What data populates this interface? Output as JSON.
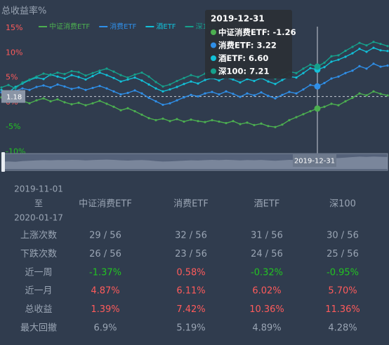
{
  "chart_data": {
    "type": "line",
    "title": "总收益率%",
    "categories": [
      null,
      null,
      null,
      null,
      null,
      null,
      null,
      null,
      null,
      null,
      null,
      null,
      null,
      null,
      null,
      null,
      null,
      null,
      null,
      null,
      null,
      null,
      null,
      null,
      null,
      null,
      null,
      null,
      null,
      null,
      null,
      null,
      null,
      null,
      null,
      null,
      null,
      null,
      null,
      null,
      null,
      null,
      null,
      null,
      null,
      "2019-12-31",
      null,
      null,
      null,
      null,
      null,
      null,
      null,
      null,
      null,
      null
    ],
    "series": [
      {
        "name": "中证消费ETF",
        "color": "#4caf50",
        "values": [
          1.0,
          0.5,
          0.9,
          0.3,
          -0.2,
          0.4,
          0.8,
          0.2,
          0.6,
          0.0,
          -0.4,
          -0.1,
          -0.6,
          -0.2,
          0.3,
          -0.3,
          -0.9,
          -1.6,
          -1.2,
          -1.8,
          -2.5,
          -3.2,
          -3.6,
          -3.3,
          -3.8,
          -3.4,
          -3.9,
          -3.5,
          -3.8,
          -4.0,
          -3.6,
          -3.9,
          -4.2,
          -3.8,
          -4.4,
          -4.1,
          -4.6,
          -4.3,
          -4.8,
          -5.0,
          -4.5,
          -3.6,
          -3.0,
          -2.4,
          -1.8,
          -1.26,
          -0.9,
          -0.3,
          -0.6,
          0.2,
          0.9,
          1.8,
          1.4,
          2.2,
          1.7,
          1.39
        ]
      },
      {
        "name": "消费ETF",
        "color": "#2f8fe8",
        "values": [
          2.0,
          1.6,
          2.3,
          2.8,
          2.5,
          3.1,
          3.4,
          3.0,
          3.6,
          3.2,
          2.7,
          3.0,
          2.5,
          2.9,
          3.3,
          2.8,
          2.2,
          1.6,
          1.9,
          2.4,
          1.8,
          0.9,
          0.2,
          -0.5,
          -0.2,
          0.4,
          1.0,
          1.5,
          1.2,
          1.8,
          2.1,
          1.6,
          2.2,
          1.7,
          1.1,
          1.8,
          1.4,
          2.0,
          1.3,
          0.8,
          1.5,
          2.1,
          1.8,
          2.6,
          3.5,
          3.22,
          3.9,
          4.8,
          5.2,
          5.9,
          6.4,
          7.3,
          6.8,
          7.8,
          7.2,
          7.42
        ]
      },
      {
        "name": "酒ETF",
        "color": "#12c0d8",
        "values": [
          2.5,
          2.0,
          3.1,
          3.8,
          4.5,
          5.0,
          4.7,
          5.6,
          5.2,
          4.8,
          5.5,
          5.1,
          4.6,
          5.3,
          6.0,
          5.5,
          4.9,
          4.2,
          4.6,
          5.0,
          4.4,
          3.6,
          2.8,
          2.2,
          2.6,
          3.1,
          3.7,
          4.2,
          3.8,
          4.5,
          4.9,
          4.4,
          5.0,
          4.6,
          4.0,
          4.7,
          4.3,
          4.9,
          4.2,
          3.7,
          4.5,
          5.2,
          5.0,
          5.9,
          6.9,
          6.6,
          7.1,
          8.2,
          8.6,
          9.2,
          9.9,
          10.8,
          10.2,
          11.0,
          10.5,
          10.36
        ]
      },
      {
        "name": "深100",
        "color": "#16a08c",
        "values": [
          3.0,
          3.5,
          2.8,
          4.0,
          4.6,
          5.2,
          5.8,
          5.5,
          6.0,
          5.7,
          6.3,
          6.1,
          5.4,
          5.9,
          6.4,
          6.8,
          6.2,
          5.5,
          5.0,
          5.6,
          6.0,
          5.2,
          4.1,
          3.2,
          3.6,
          4.3,
          4.9,
          5.5,
          5.1,
          5.8,
          6.2,
          5.7,
          6.4,
          5.9,
          5.3,
          6.0,
          5.6,
          6.1,
          5.4,
          4.8,
          5.5,
          6.2,
          5.9,
          6.8,
          7.6,
          7.21,
          8.0,
          9.3,
          9.5,
          10.4,
          11.2,
          12.0,
          11.5,
          12.2,
          11.8,
          11.36
        ]
      }
    ],
    "ylim": [
      -10,
      15
    ],
    "yticks": [
      {
        "value": -10,
        "label": "-10%"
      },
      {
        "value": -5,
        "label": "-5%"
      },
      {
        "value": 0,
        "label": "0%"
      },
      {
        "value": 5,
        "label": "5%"
      },
      {
        "value": 10,
        "label": "10%"
      },
      {
        "value": 15,
        "label": "15%"
      }
    ],
    "grid": false,
    "y_pointer": 1.18,
    "tooltip": [
      "中证消费ETF: -1.26",
      "消费ETF: 3.22",
      "酒ETF: 6.60",
      "深100: 7.21"
    ],
    "zoom_label": "2019-12-31"
  },
  "table": {
    "period": [
      "2019-11-01",
      "至",
      "2020-01-17"
    ],
    "columns": [
      "中证消费ETF",
      "消费ETF",
      "酒ETF",
      "深100"
    ],
    "rows": [
      {
        "label": "上涨次数",
        "cells": [
          "29 / 56",
          "32 / 56",
          "31 / 56",
          "30 / 56"
        ],
        "signed": false
      },
      {
        "label": "下跌次数",
        "cells": [
          "26 / 56",
          "23 / 56",
          "24 / 56",
          "25 / 56"
        ],
        "signed": false
      },
      {
        "label": "近一周",
        "cells": [
          "-1.37%",
          "0.58%",
          "-0.32%",
          "-0.95%"
        ],
        "signed": true
      },
      {
        "label": "近一月",
        "cells": [
          "4.87%",
          "6.11%",
          "6.02%",
          "5.70%"
        ],
        "signed": true
      },
      {
        "label": "总收益",
        "cells": [
          "1.39%",
          "7.42%",
          "10.36%",
          "11.36%"
        ],
        "signed": true
      },
      {
        "label": "最大回撤",
        "cells": [
          "6.9%",
          "5.19%",
          "4.89%",
          "4.28%"
        ],
        "signed": false
      }
    ]
  }
}
